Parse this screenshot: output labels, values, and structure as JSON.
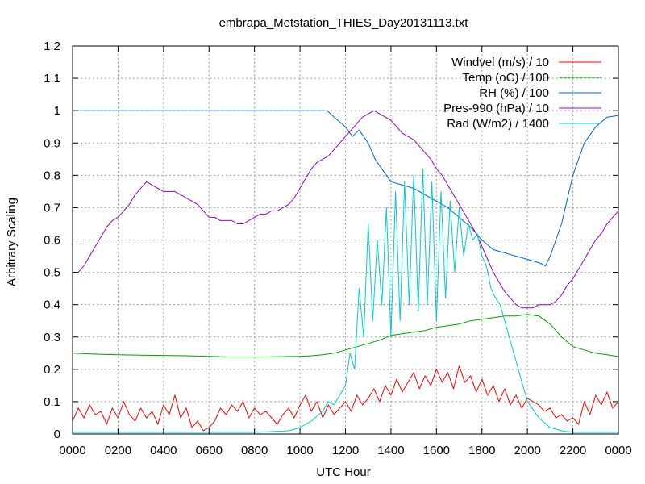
{
  "chart_data": {
    "type": "line",
    "title": "embrapa_Metstation_THIES_Day20131113.txt",
    "xlabel": "UTC Hour",
    "ylabel": "Arbitrary Scaling",
    "xlim": [
      0,
      24
    ],
    "ylim": [
      0,
      1.2
    ],
    "x_ticks": [
      {
        "value": 0,
        "label": "0000"
      },
      {
        "value": 2,
        "label": "0200"
      },
      {
        "value": 4,
        "label": "0400"
      },
      {
        "value": 6,
        "label": "0600"
      },
      {
        "value": 8,
        "label": "0800"
      },
      {
        "value": 10,
        "label": "1000"
      },
      {
        "value": 12,
        "label": "1200"
      },
      {
        "value": 14,
        "label": "1400"
      },
      {
        "value": 16,
        "label": "1600"
      },
      {
        "value": 18,
        "label": "1800"
      },
      {
        "value": 20,
        "label": "2000"
      },
      {
        "value": 22,
        "label": "2200"
      },
      {
        "value": 24,
        "label": "0000"
      }
    ],
    "y_ticks": [
      {
        "value": 0,
        "label": "0"
      },
      {
        "value": 0.1,
        "label": "0.1"
      },
      {
        "value": 0.2,
        "label": "0.2"
      },
      {
        "value": 0.3,
        "label": "0.3"
      },
      {
        "value": 0.4,
        "label": "0.4"
      },
      {
        "value": 0.5,
        "label": "0.5"
      },
      {
        "value": 0.6,
        "label": "0.6"
      },
      {
        "value": 0.7,
        "label": "0.7"
      },
      {
        "value": 0.8,
        "label": "0.8"
      },
      {
        "value": 0.9,
        "label": "0.9"
      },
      {
        "value": 1,
        "label": "1"
      },
      {
        "value": 1.1,
        "label": "1.1"
      },
      {
        "value": 1.2,
        "label": "1.2"
      }
    ],
    "grid": true,
    "legend_position": "top-right",
    "series": [
      {
        "name": "Windvel (m/s) / 10",
        "color": "#ff0000",
        "x": [
          0,
          0.25,
          0.5,
          0.75,
          1,
          1.25,
          1.5,
          1.75,
          2,
          2.25,
          2.5,
          2.75,
          3,
          3.25,
          3.5,
          3.75,
          4,
          4.25,
          4.5,
          4.75,
          5,
          5.25,
          5.5,
          5.75,
          6,
          6.25,
          6.5,
          6.75,
          7,
          7.25,
          7.5,
          7.75,
          8,
          8.25,
          8.5,
          8.75,
          9,
          9.25,
          9.5,
          9.75,
          10,
          10.25,
          10.5,
          10.75,
          11,
          11.25,
          11.5,
          11.75,
          12,
          12.25,
          12.5,
          12.75,
          13,
          13.25,
          13.5,
          13.75,
          14,
          14.25,
          14.5,
          14.75,
          15,
          15.25,
          15.5,
          15.75,
          16,
          16.25,
          16.5,
          16.75,
          17,
          17.25,
          17.5,
          17.75,
          18,
          18.25,
          18.5,
          18.75,
          19,
          19.25,
          19.5,
          19.75,
          20,
          20.25,
          20.5,
          20.75,
          21,
          21.25,
          21.5,
          21.75,
          22,
          22.25,
          22.5,
          22.75,
          23,
          23.25,
          23.5,
          23.75,
          24
        ],
        "y": [
          0.04,
          0.08,
          0.05,
          0.09,
          0.06,
          0.07,
          0.03,
          0.08,
          0.05,
          0.1,
          0.06,
          0.04,
          0.08,
          0.05,
          0.07,
          0.03,
          0.09,
          0.06,
          0.12,
          0.05,
          0.08,
          0.02,
          0.04,
          0.01,
          0.02,
          0.04,
          0.08,
          0.06,
          0.09,
          0.07,
          0.1,
          0.05,
          0.08,
          0.06,
          0.07,
          0.05,
          0.03,
          0.06,
          0.08,
          0.05,
          0.09,
          0.12,
          0.07,
          0.1,
          0.05,
          0.09,
          0.06,
          0.08,
          0.1,
          0.07,
          0.12,
          0.09,
          0.11,
          0.14,
          0.1,
          0.15,
          0.12,
          0.17,
          0.13,
          0.16,
          0.19,
          0.14,
          0.18,
          0.15,
          0.2,
          0.16,
          0.19,
          0.14,
          0.21,
          0.16,
          0.18,
          0.13,
          0.17,
          0.12,
          0.15,
          0.1,
          0.14,
          0.09,
          0.12,
          0.08,
          0.11,
          0.1,
          0.09,
          0.07,
          0.08,
          0.05,
          0.06,
          0.04,
          0.05,
          0.03,
          0.1,
          0.06,
          0.12,
          0.09,
          0.13,
          0.08,
          0.1
        ]
      },
      {
        "name": "Temp (oC) / 100",
        "color": "#00a000",
        "x": [
          0,
          1,
          2,
          3,
          4,
          5,
          6,
          7,
          8,
          9,
          10,
          10.5,
          11,
          11.5,
          12,
          12.5,
          13,
          13.5,
          14,
          14.5,
          15,
          15.5,
          16,
          16.5,
          17,
          17.5,
          18,
          18.5,
          19,
          19.5,
          20,
          20.5,
          21,
          21.5,
          22,
          22.5,
          23,
          23.5,
          24
        ],
        "y": [
          0.25,
          0.247,
          0.245,
          0.244,
          0.243,
          0.242,
          0.24,
          0.238,
          0.238,
          0.239,
          0.24,
          0.242,
          0.245,
          0.25,
          0.26,
          0.27,
          0.28,
          0.29,
          0.305,
          0.31,
          0.315,
          0.32,
          0.33,
          0.335,
          0.34,
          0.35,
          0.355,
          0.36,
          0.365,
          0.365,
          0.37,
          0.365,
          0.34,
          0.3,
          0.27,
          0.26,
          0.25,
          0.245,
          0.24
        ]
      },
      {
        "name": "RH (%) / 100",
        "color": "#0066cc",
        "x": [
          0,
          2,
          4,
          6,
          8,
          10,
          11.2,
          11.5,
          12,
          12.3,
          12.6,
          13,
          13.3,
          13.6,
          14,
          14.5,
          15,
          15.5,
          16,
          16.5,
          17,
          17.5,
          18,
          18.5,
          19,
          19.5,
          20,
          20.5,
          20.8,
          21,
          21.5,
          22,
          22.5,
          23,
          23.5,
          24
        ],
        "y": [
          1,
          1,
          1,
          1,
          1,
          1,
          1,
          0.98,
          0.95,
          0.92,
          0.94,
          0.9,
          0.85,
          0.82,
          0.78,
          0.77,
          0.76,
          0.74,
          0.72,
          0.7,
          0.67,
          0.64,
          0.6,
          0.57,
          0.56,
          0.55,
          0.54,
          0.53,
          0.52,
          0.55,
          0.65,
          0.8,
          0.9,
          0.95,
          0.98,
          0.985
        ]
      },
      {
        "name": "Pres-990 (hPa) / 10",
        "color": "#9900cc",
        "x": [
          0,
          0.25,
          0.5,
          0.75,
          1,
          1.25,
          1.5,
          1.75,
          2,
          2.25,
          2.5,
          2.75,
          3,
          3.25,
          3.5,
          3.75,
          4,
          4.25,
          4.5,
          4.75,
          5,
          5.25,
          5.5,
          5.75,
          6,
          6.25,
          6.5,
          6.75,
          7,
          7.25,
          7.5,
          7.75,
          8,
          8.25,
          8.5,
          8.75,
          9,
          9.25,
          9.5,
          9.75,
          10,
          10.25,
          10.5,
          10.75,
          11,
          11.25,
          11.5,
          11.75,
          12,
          12.25,
          12.5,
          12.75,
          13,
          13.25,
          13.5,
          13.75,
          14,
          14.25,
          14.5,
          14.75,
          15,
          15.25,
          15.5,
          15.75,
          16,
          16.25,
          16.5,
          16.75,
          17,
          17.25,
          17.5,
          17.75,
          18,
          18.25,
          18.5,
          18.75,
          19,
          19.25,
          19.5,
          19.75,
          20,
          20.25,
          20.5,
          20.75,
          21,
          21.25,
          21.5,
          21.75,
          22,
          22.25,
          22.5,
          22.75,
          23,
          23.25,
          23.5,
          23.75,
          24
        ],
        "y": [
          0.5,
          0.5,
          0.52,
          0.55,
          0.58,
          0.61,
          0.64,
          0.66,
          0.67,
          0.69,
          0.71,
          0.74,
          0.76,
          0.78,
          0.77,
          0.76,
          0.75,
          0.75,
          0.75,
          0.74,
          0.73,
          0.72,
          0.71,
          0.69,
          0.67,
          0.67,
          0.66,
          0.66,
          0.66,
          0.65,
          0.65,
          0.66,
          0.67,
          0.68,
          0.68,
          0.69,
          0.69,
          0.7,
          0.71,
          0.73,
          0.76,
          0.79,
          0.82,
          0.84,
          0.85,
          0.86,
          0.88,
          0.9,
          0.92,
          0.94,
          0.96,
          0.98,
          0.99,
          1,
          0.99,
          0.98,
          0.97,
          0.95,
          0.93,
          0.92,
          0.91,
          0.89,
          0.87,
          0.85,
          0.82,
          0.8,
          0.77,
          0.74,
          0.71,
          0.68,
          0.65,
          0.62,
          0.58,
          0.54,
          0.5,
          0.47,
          0.44,
          0.42,
          0.4,
          0.39,
          0.39,
          0.39,
          0.4,
          0.4,
          0.4,
          0.41,
          0.43,
          0.46,
          0.48,
          0.51,
          0.54,
          0.57,
          0.6,
          0.62,
          0.65,
          0.67,
          0.69
        ]
      },
      {
        "name": "Rad (W/m2) / 1400",
        "color": "#00cccc",
        "x": [
          0,
          2,
          4,
          6,
          8,
          9.5,
          10,
          10.5,
          11,
          11.25,
          11.5,
          11.75,
          12,
          12.2,
          12.4,
          12.6,
          12.8,
          13,
          13.2,
          13.4,
          13.6,
          13.8,
          14,
          14.2,
          14.4,
          14.6,
          14.8,
          15,
          15.2,
          15.4,
          15.6,
          15.8,
          16,
          16.2,
          16.4,
          16.6,
          16.8,
          17,
          17.2,
          17.4,
          17.6,
          17.8,
          18,
          18.2,
          18.4,
          18.6,
          18.8,
          19,
          19.2,
          19.4,
          19.6,
          19.8,
          20,
          20.5,
          21,
          21.5,
          22,
          23,
          24
        ],
        "y": [
          0.005,
          0.005,
          0.005,
          0.005,
          0.005,
          0.01,
          0.02,
          0.04,
          0.07,
          0.1,
          0.09,
          0.12,
          0.15,
          0.25,
          0.2,
          0.45,
          0.3,
          0.65,
          0.35,
          0.6,
          0.4,
          0.7,
          0.3,
          0.75,
          0.35,
          0.78,
          0.4,
          0.8,
          0.38,
          0.82,
          0.4,
          0.78,
          0.35,
          0.75,
          0.42,
          0.72,
          0.5,
          0.7,
          0.55,
          0.65,
          0.6,
          0.62,
          0.55,
          0.52,
          0.45,
          0.42,
          0.4,
          0.35,
          0.3,
          0.25,
          0.2,
          0.15,
          0.1,
          0.05,
          0.02,
          0.01,
          0.005,
          0.005,
          0.005
        ]
      }
    ]
  }
}
